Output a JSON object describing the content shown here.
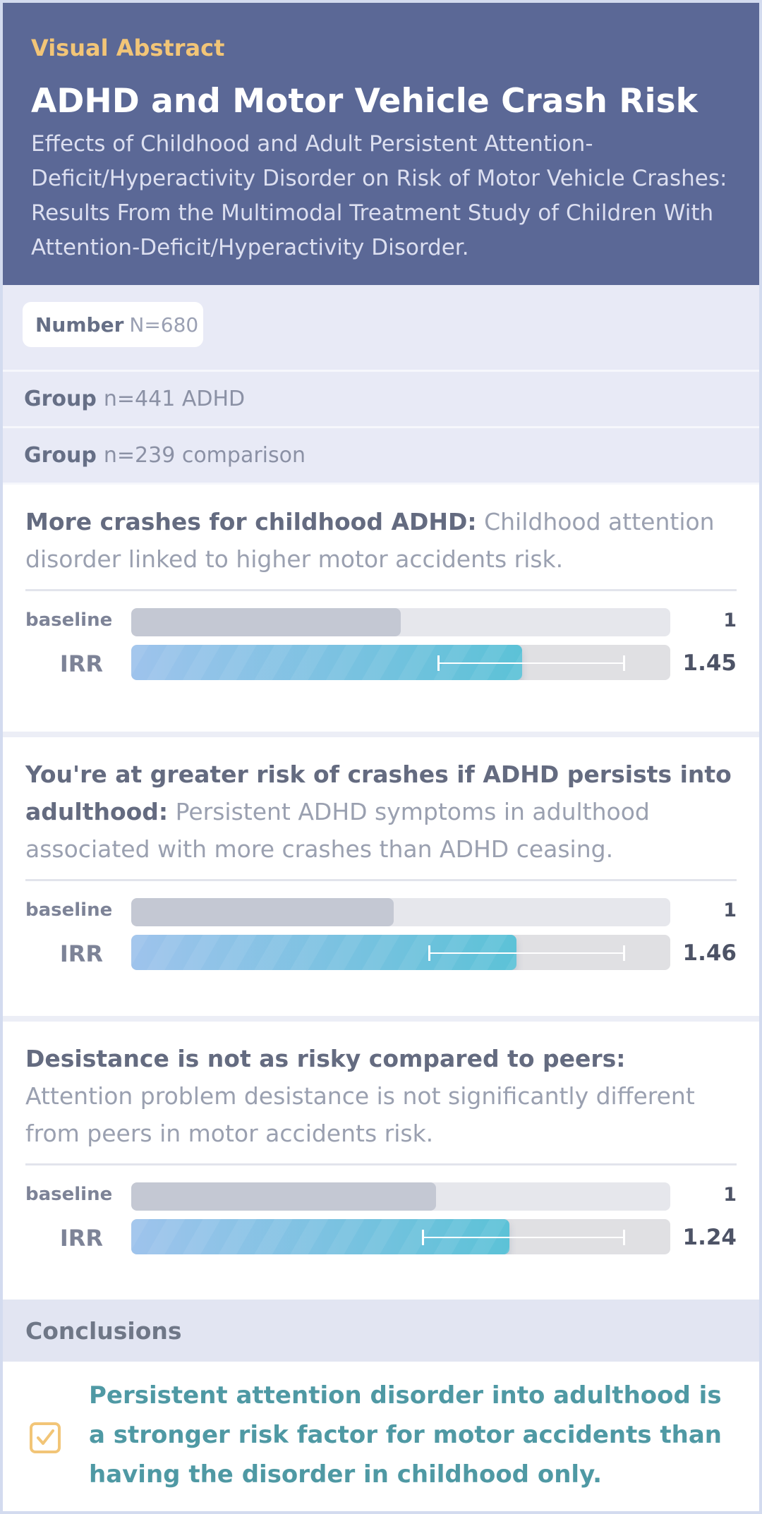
{
  "header": {
    "kicker": "Visual Abstract",
    "title": "ADHD and Motor Vehicle Crash Risk",
    "subtitle": "Effects of Childhood and Adult Persistent Attention-Deficit/Hyperactivity Disorder on Risk of Motor Vehicle Crashes: Results From the Multimodal Treatment Study of Children With Attention-Deficit/Hyperactivity Disorder."
  },
  "number": {
    "label": "Number",
    "value": "N=680"
  },
  "groups": [
    {
      "label": "Group",
      "value": "n=441 ADHD"
    },
    {
      "label": "Group",
      "value": "n=239 comparison"
    }
  ],
  "findings": [
    {
      "heading": "More crashes for childhood ADHD:",
      "text": " Childhood attention disorder linked to higher motor accidents risk.",
      "baseline": {
        "label": "baseline",
        "value": "1",
        "fill": 0.5
      },
      "irr": {
        "label": "IRR",
        "value": "1.45",
        "fill": 0.725,
        "ci_low": 0.57,
        "ci_high": 0.915
      }
    },
    {
      "heading": "You're at greater risk of crashes if ADHD persists into adulthood:",
      "text": " Persistent ADHD symptoms in adulthood associated with more crashes than ADHD ceasing.",
      "baseline": {
        "label": "baseline",
        "value": "1",
        "fill": 0.487
      },
      "irr": {
        "label": "IRR",
        "value": "1.46",
        "fill": 0.715,
        "ci_low": 0.552,
        "ci_high": 0.915
      }
    },
    {
      "heading": "Desistance is not as risky compared to peers:",
      "text": " Attention problem desistance is not significantly different from peers in motor accidents risk.",
      "baseline": {
        "label": "baseline",
        "value": "1",
        "fill": 0.565
      },
      "irr": {
        "label": "IRR",
        "value": "1.24",
        "fill": 0.702,
        "ci_low": 0.54,
        "ci_high": 0.915
      }
    }
  ],
  "conclusions": {
    "heading": "Conclusions",
    "icon": "checkbox-icon",
    "accent": "#f2c577",
    "text": "Persistent attention disorder into adulthood is a stronger risk factor for motor accidents than having the disorder in childhood only."
  },
  "colors": {
    "header_bg": "#5b6896",
    "band_bg": "#e8eaf6",
    "conclusion_text": "#4f99a4"
  }
}
